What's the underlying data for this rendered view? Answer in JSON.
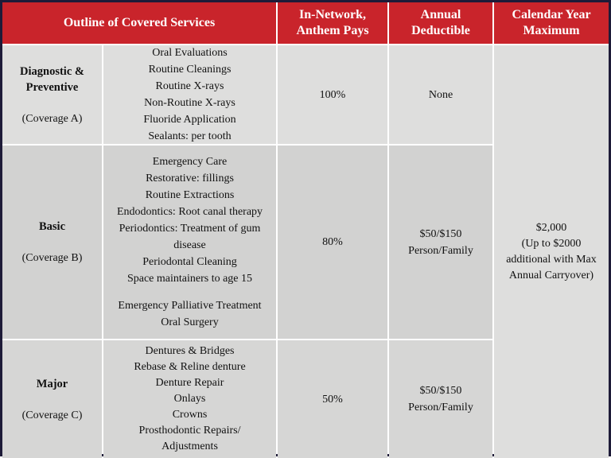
{
  "table": {
    "header": {
      "outline": "Outline of Covered Services",
      "in_network": "In-Network, Anthem Pays",
      "deductible": "Annual Deductible",
      "calendar_max": "Calendar Year Maximum"
    },
    "rows": [
      {
        "category": "Diagnostic & Preventive",
        "coverage": "(Coverage A)",
        "services": [
          "Oral Evaluations",
          "Routine Cleanings",
          "Routine X-rays",
          "Non-Routine X-rays",
          "Fluoride Application",
          "Sealants: per tooth"
        ],
        "in_network": "100%",
        "deductible": "None"
      },
      {
        "category": "Basic",
        "coverage": "(Coverage B)",
        "services": [
          "Emergency Care",
          "Restorative: fillings",
          "Routine Extractions",
          "Endodontics: Root canal therapy",
          "Periodontics: Treatment of gum disease",
          "Periodontal Cleaning",
          "Space maintainers to age 15",
          "Emergency Palliative Treatment",
          "Oral Surgery"
        ],
        "in_network": "80%",
        "deductible": "$50/$150 Person/Family"
      },
      {
        "category": "Major",
        "coverage": "(Coverage C)",
        "services": [
          "Dentures & Bridges",
          "Rebase & Reline denture",
          "Denture Repair",
          "Onlays",
          "Crowns",
          "Prosthodontic Repairs/ Adjustments"
        ],
        "in_network": "50%",
        "deductible": "$50/$150 Person/Family"
      }
    ],
    "calendar_max_amount": "$2,000",
    "calendar_max_note": "(Up to $2000 additional with Max Annual Carryover)"
  },
  "colors": {
    "header_red": "#c9242b",
    "header_text": "#ffffff",
    "row_light_gray": "#dededd",
    "row_mid_gray": "#d2d2d1",
    "border_navy": "#1e1b38"
  }
}
